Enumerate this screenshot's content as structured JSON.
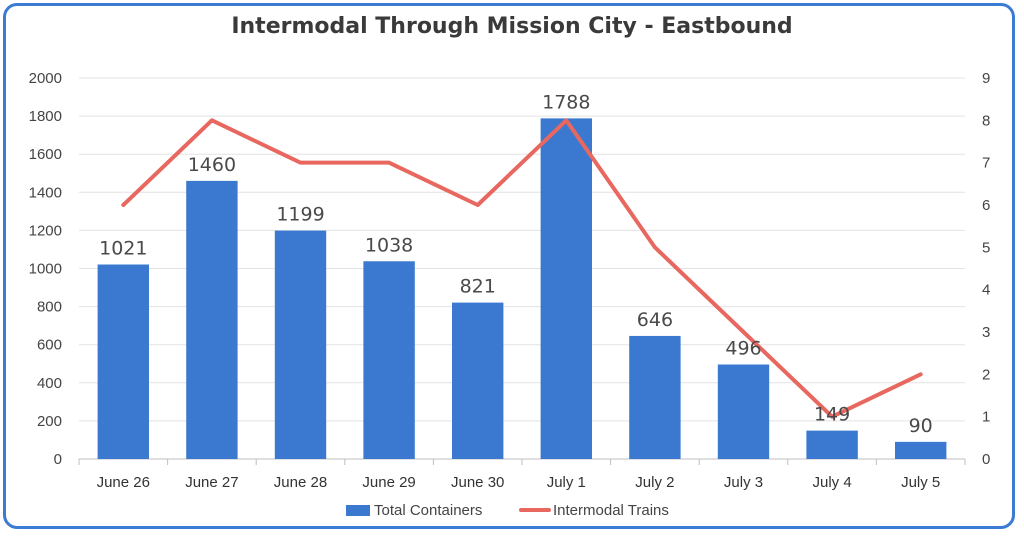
{
  "chart_data": {
    "type": "bar",
    "title": "Intermodal Through Mission City - Eastbound",
    "categories": [
      "June 26",
      "June 27",
      "June 28",
      "June 29",
      "June 30",
      "July 1",
      "July 2",
      "July 3",
      "July 4",
      "July 5"
    ],
    "series": [
      {
        "name": "Total Containers",
        "type": "bar",
        "axis": "left",
        "color": "#3b78cf",
        "values": [
          1021,
          1460,
          1199,
          1038,
          821,
          1788,
          646,
          496,
          149,
          90
        ]
      },
      {
        "name": "Intermodal Trains",
        "type": "line",
        "axis": "right",
        "color": "#e8675f",
        "values": [
          6,
          8,
          7,
          7,
          6,
          8,
          5,
          3,
          1,
          2
        ]
      }
    ],
    "y_left": {
      "min": 0,
      "max": 2000,
      "step": 200
    },
    "y_right": {
      "min": 0,
      "max": 9,
      "step": 1
    },
    "grid": true,
    "legend_position": "bottom"
  }
}
